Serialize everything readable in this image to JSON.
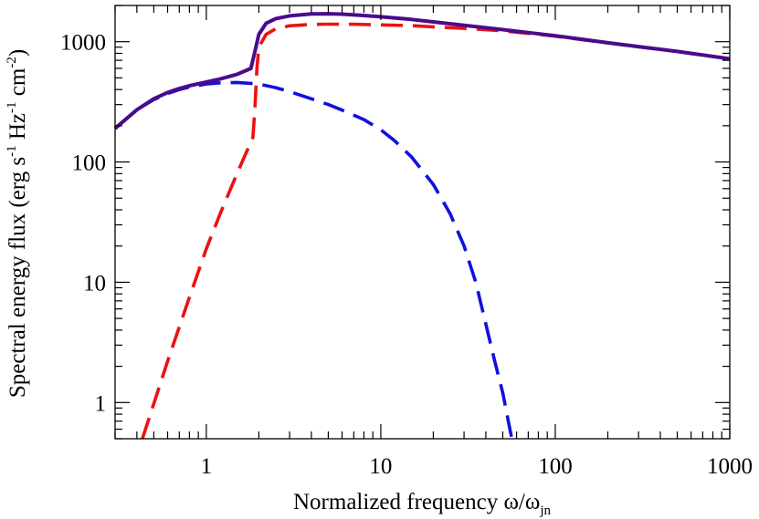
{
  "chart_data": {
    "type": "line",
    "xscale": "log",
    "yscale": "log",
    "xlim": [
      0.3,
      1000
    ],
    "ylim": [
      0.5,
      2000
    ],
    "grid": false,
    "legend": "none",
    "xlabel": {
      "main": "Normalized frequency ω/ω",
      "subscript": "jn"
    },
    "ylabel": {
      "main": "Spectral energy flux (erg s",
      "sup1": "-1",
      "mid1": " Hz",
      "sup2": "-1",
      "mid2": " cm",
      "sup3": "-2",
      "end": ")"
    },
    "xticks": [
      {
        "value": 1,
        "label": "1"
      },
      {
        "value": 10,
        "label": "10"
      },
      {
        "value": 100,
        "label": "100"
      },
      {
        "value": 1000,
        "label": "1000"
      }
    ],
    "yticks": [
      {
        "value": 1,
        "label": "1"
      },
      {
        "value": 10,
        "label": "10"
      },
      {
        "value": 100,
        "label": "100"
      },
      {
        "value": 1000,
        "label": "1000"
      }
    ],
    "series": [
      {
        "id": "total",
        "style": "solid",
        "color": "#4b0a8c",
        "x": [
          0.3,
          0.4,
          0.5,
          0.6,
          0.7,
          0.8,
          1.0,
          1.2,
          1.5,
          1.8,
          1.9,
          2.0,
          2.2,
          2.5,
          3.0,
          4.0,
          5.0,
          6.0,
          8.0,
          10,
          15,
          20,
          30,
          50,
          100,
          200,
          300,
          500,
          1000
        ],
        "y": [
          190,
          272,
          335,
          378,
          408,
          430,
          462,
          490,
          535,
          600,
          830,
          1150,
          1420,
          1555,
          1640,
          1700,
          1705,
          1695,
          1650,
          1610,
          1530,
          1460,
          1370,
          1260,
          1120,
          980,
          910,
          830,
          720
        ]
      },
      {
        "id": "blue-component",
        "style": "dashed",
        "color": "#1010e0",
        "x": [
          0.3,
          0.4,
          0.5,
          0.6,
          0.7,
          0.8,
          1.0,
          1.2,
          1.5,
          2.0,
          2.5,
          3.0,
          4.0,
          5.0,
          6.0,
          8.0,
          10,
          12,
          15,
          20,
          25,
          30,
          35,
          40,
          45,
          50,
          56
        ],
        "y": [
          190,
          272,
          330,
          370,
          400,
          420,
          445,
          455,
          458,
          445,
          415,
          385,
          335,
          300,
          270,
          225,
          185,
          150,
          110,
          65,
          37,
          20,
          10,
          4.5,
          2.2,
          1.2,
          0.52
        ]
      },
      {
        "id": "red-component",
        "style": "dashed",
        "color": "#ee1111",
        "x": [
          0.43,
          0.6,
          0.8,
          1.0,
          1.2,
          1.5,
          1.85,
          1.9,
          1.95,
          2.0,
          2.2,
          2.5,
          3.0,
          4.0,
          5.0,
          7.0,
          10,
          15,
          20,
          30,
          50,
          100,
          200,
          300,
          500,
          1000
        ],
        "y": [
          0.5,
          2.2,
          7.5,
          19,
          37,
          80,
          160,
          280,
          600,
          900,
          1150,
          1280,
          1355,
          1390,
          1398,
          1395,
          1380,
          1360,
          1330,
          1290,
          1230,
          1110,
          975,
          905,
          830,
          720
        ]
      }
    ]
  }
}
